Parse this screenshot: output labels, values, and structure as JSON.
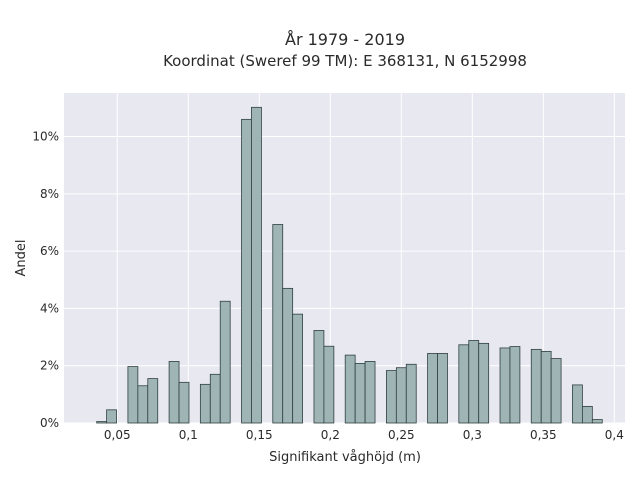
{
  "chart_data": {
    "type": "bar",
    "title": "År 1979 - 2019",
    "subtitle": "Koordinat (Sweref 99 TM): E 368131, N 6152998",
    "xlabel": "Signifikant våghöjd (m)",
    "ylabel": "Andel",
    "xlim": [
      0.0125,
      0.4075
    ],
    "ylim": [
      0,
      0.1152
    ],
    "bin_width": 0.007,
    "x_ticks": [
      {
        "value": 0.05,
        "label": "0,05"
      },
      {
        "value": 0.1,
        "label": "0,1"
      },
      {
        "value": 0.15,
        "label": "0,15"
      },
      {
        "value": 0.2,
        "label": "0,2"
      },
      {
        "value": 0.25,
        "label": "0,25"
      },
      {
        "value": 0.3,
        "label": "0,3"
      },
      {
        "value": 0.35,
        "label": "0,35"
      },
      {
        "value": 0.4,
        "label": "0,4"
      }
    ],
    "y_ticks": [
      {
        "value": 0,
        "label": "0%"
      },
      {
        "value": 0.02,
        "label": "2%"
      },
      {
        "value": 0.04,
        "label": "4%"
      },
      {
        "value": 0.06,
        "label": "6%"
      },
      {
        "value": 0.08,
        "label": "8%"
      },
      {
        "value": 0.1,
        "label": "10%"
      }
    ],
    "grid": true,
    "bins": [
      {
        "x": 0.039,
        "y": 0.0005
      },
      {
        "x": 0.046,
        "y": 0.0046
      },
      {
        "x": 0.061,
        "y": 0.0197
      },
      {
        "x": 0.068,
        "y": 0.013
      },
      {
        "x": 0.075,
        "y": 0.0155
      },
      {
        "x": 0.09,
        "y": 0.0215
      },
      {
        "x": 0.097,
        "y": 0.0142
      },
      {
        "x": 0.112,
        "y": 0.0135
      },
      {
        "x": 0.119,
        "y": 0.017
      },
      {
        "x": 0.126,
        "y": 0.0425
      },
      {
        "x": 0.141,
        "y": 0.106
      },
      {
        "x": 0.148,
        "y": 0.1102
      },
      {
        "x": 0.163,
        "y": 0.0693
      },
      {
        "x": 0.17,
        "y": 0.047
      },
      {
        "x": 0.177,
        "y": 0.038
      },
      {
        "x": 0.192,
        "y": 0.0323
      },
      {
        "x": 0.199,
        "y": 0.0268
      },
      {
        "x": 0.214,
        "y": 0.0237
      },
      {
        "x": 0.221,
        "y": 0.0208
      },
      {
        "x": 0.228,
        "y": 0.0215
      },
      {
        "x": 0.243,
        "y": 0.0183
      },
      {
        "x": 0.25,
        "y": 0.0193
      },
      {
        "x": 0.257,
        "y": 0.0205
      },
      {
        "x": 0.272,
        "y": 0.0243
      },
      {
        "x": 0.279,
        "y": 0.0243
      },
      {
        "x": 0.294,
        "y": 0.0273
      },
      {
        "x": 0.301,
        "y": 0.0288
      },
      {
        "x": 0.308,
        "y": 0.0278
      },
      {
        "x": 0.323,
        "y": 0.0262
      },
      {
        "x": 0.33,
        "y": 0.0267
      },
      {
        "x": 0.345,
        "y": 0.0257
      },
      {
        "x": 0.352,
        "y": 0.025
      },
      {
        "x": 0.359,
        "y": 0.0225
      },
      {
        "x": 0.374,
        "y": 0.0133
      },
      {
        "x": 0.381,
        "y": 0.0058
      },
      {
        "x": 0.388,
        "y": 0.0012
      }
    ],
    "colors": {
      "bar_fill": "#9fb5b5",
      "bar_stroke": "#2f4040",
      "plot_bg": "#e8e8f0",
      "grid": "#ffffff"
    }
  }
}
